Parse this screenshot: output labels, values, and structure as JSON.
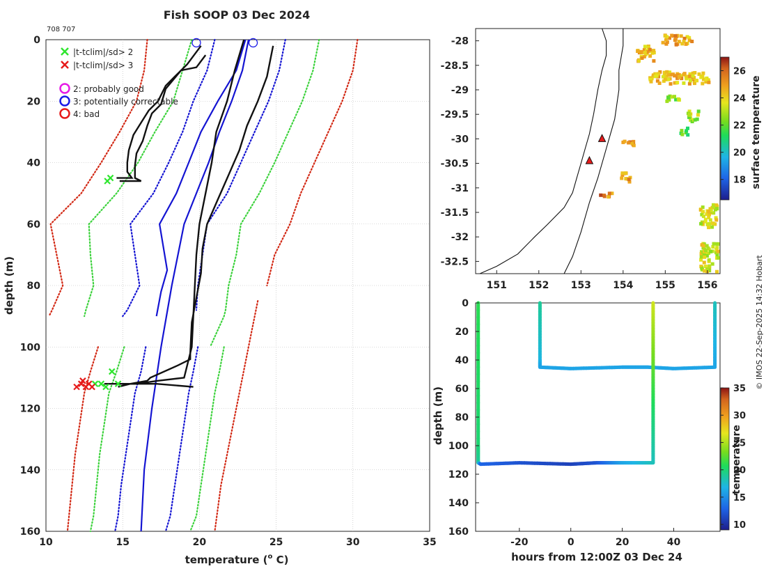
{
  "figure": {
    "title": "Fish SOOP 03 Dec 2024",
    "id_text": "708 707",
    "credit": "© IMOS 22-Sep-2025 14:32 Hobart"
  },
  "legend": {
    "items": [
      {
        "label": "|t-tclim|/sd> 2",
        "marker": "x",
        "color": "#2ee62e"
      },
      {
        "label": "|t-tclim|/sd> 3",
        "marker": "x",
        "color": "#e61a1a"
      },
      {
        "label": "2: probably good",
        "marker": "o",
        "color": "#e61ae6"
      },
      {
        "label": "3: potentially correctable",
        "marker": "o",
        "color": "#1a1ae6"
      },
      {
        "label": "4: bad",
        "marker": "o",
        "color": "#e61a1a"
      }
    ]
  },
  "colors": {
    "black": "#111111",
    "blue": "#1414d2",
    "green": "#3cd23c",
    "red": "#d22814",
    "grid": "#b4b4b4"
  },
  "chart_data": [
    {
      "name": "profile",
      "type": "line",
      "title": "Fish SOOP 03 Dec 2024",
      "xlabel": "temperature (o C)",
      "xlabel_main": "temperature (",
      "xlabel_sup": "o",
      "xlabel_tail": " C)",
      "ylabel": "depth (m)",
      "xlim": [
        10,
        35
      ],
      "ylim": [
        160,
        0
      ],
      "xticks": [
        10,
        15,
        20,
        25,
        30,
        35
      ],
      "yticks": [
        0,
        20,
        40,
        60,
        80,
        100,
        120,
        140,
        160
      ],
      "grid": true,
      "series": [
        {
          "name": "climatology red -3sd",
          "style": "red-dot",
          "x": [
            16.6,
            16.4,
            15.9,
            14.8,
            13.6,
            12.3,
            10.3,
            10.7,
            11.1,
            10.4,
            10.2
          ],
          "y": [
            0,
            10,
            20,
            30,
            40,
            50,
            60,
            70,
            80,
            88,
            90
          ]
        },
        {
          "name": "climatology red +3sd",
          "style": "red-dot",
          "x": [
            30.3,
            30.0,
            29.3,
            28.4,
            27.5,
            26.6,
            25.9,
            24.9,
            24.4
          ],
          "y": [
            0,
            10,
            20,
            30,
            40,
            50,
            60,
            70,
            80
          ]
        },
        {
          "name": "climatology red lower deep",
          "style": "red-dot",
          "x": [
            13.4,
            12.9,
            12.5,
            12.2,
            11.9,
            11.7,
            11.5,
            11.4
          ],
          "y": [
            100,
            108,
            115,
            125,
            135,
            145,
            155,
            160
          ]
        },
        {
          "name": "climatology red upper deep",
          "style": "red-dot",
          "x": [
            23.8,
            23.4,
            23.0,
            22.6,
            22.2,
            21.8,
            21.4,
            21.0
          ],
          "y": [
            85,
            95,
            105,
            115,
            125,
            135,
            145,
            160
          ]
        },
        {
          "name": "climatology green -2sd",
          "style": "green-dot",
          "x": [
            19.5,
            18.9,
            18.3,
            17.1,
            16.0,
            14.6,
            12.8,
            12.9,
            13.1,
            12.6,
            12.5
          ],
          "y": [
            0,
            10,
            20,
            30,
            40,
            50,
            60,
            70,
            80,
            88,
            90
          ]
        },
        {
          "name": "climatology green +2sd",
          "style": "green-dot",
          "x": [
            27.8,
            27.4,
            26.7,
            25.8,
            24.9,
            23.9,
            22.7,
            22.4,
            21.9,
            21.7,
            21.6,
            20.7
          ],
          "y": [
            0,
            10,
            20,
            30,
            40,
            50,
            60,
            70,
            80,
            88,
            90,
            100
          ]
        },
        {
          "name": "climatology green lower deep",
          "style": "green-dot",
          "x": [
            15.1,
            14.6,
            14.1,
            13.8,
            13.5,
            13.3,
            13.1,
            12.9
          ],
          "y": [
            100,
            108,
            115,
            125,
            135,
            145,
            155,
            160
          ]
        },
        {
          "name": "climatology green upper deep",
          "style": "green-dot",
          "x": [
            21.6,
            21.3,
            21.0,
            20.7,
            20.4,
            20.1,
            19.8,
            19.4
          ],
          "y": [
            100,
            108,
            115,
            125,
            135,
            145,
            155,
            160
          ]
        },
        {
          "name": "climatology blue -1sd",
          "style": "blue-dot",
          "x": [
            21.0,
            20.5,
            19.6,
            18.9,
            18.0,
            17.0,
            15.5,
            15.8,
            16.1,
            15.3,
            15.0
          ],
          "y": [
            0,
            10,
            20,
            30,
            40,
            50,
            60,
            70,
            80,
            88,
            90
          ]
        },
        {
          "name": "climatology blue +1sd",
          "style": "blue-dot",
          "x": [
            25.6,
            25.2,
            24.5,
            23.6,
            22.7,
            21.8,
            20.5,
            20.2,
            19.9,
            19.8
          ],
          "y": [
            0,
            10,
            20,
            30,
            40,
            50,
            60,
            70,
            80,
            88
          ]
        },
        {
          "name": "climatology blue lower deep",
          "style": "blue-dot",
          "x": [
            16.5,
            16.2,
            15.8,
            15.5,
            15.2,
            14.9,
            14.7,
            14.5
          ],
          "y": [
            100,
            108,
            115,
            125,
            135,
            145,
            155,
            160
          ]
        },
        {
          "name": "climatology blue upper deep",
          "style": "blue-dot",
          "x": [
            19.9,
            19.6,
            19.3,
            19.0,
            18.7,
            18.4,
            18.1,
            17.8
          ],
          "y": [
            100,
            108,
            115,
            125,
            135,
            145,
            155,
            160
          ]
        },
        {
          "name": "climatology mean shallow",
          "style": "blue-solid",
          "x": [
            23.0,
            22.4,
            21.2,
            20.1,
            19.3,
            18.5,
            17.4,
            17.9,
            17.5,
            17.2
          ],
          "y": [
            0,
            10,
            20,
            30,
            40,
            50,
            60,
            75,
            82,
            90
          ]
        },
        {
          "name": "climatology mean deep",
          "style": "blue-solid",
          "x": [
            23.2,
            22.8,
            22.1,
            21.3,
            20.6,
            19.8,
            19.0,
            18.2,
            17.5,
            16.9,
            16.4,
            16.2
          ],
          "y": [
            0,
            10,
            20,
            30,
            40,
            50,
            60,
            80,
            100,
            120,
            140,
            160
          ]
        },
        {
          "name": "XBT profile 1",
          "style": "black",
          "x": [
            20.4,
            19.8,
            18.8,
            17.8,
            17.5,
            16.9,
            16.6,
            16.3,
            15.9,
            15.8,
            15.8,
            16.2,
            15.0,
            14.8
          ],
          "y": [
            5,
            9,
            10,
            16,
            21,
            24,
            28,
            33,
            37,
            41,
            45,
            46,
            46,
            46
          ]
        },
        {
          "name": "XBT profile 2",
          "style": "black",
          "x": [
            20.1,
            19.2,
            18.4,
            17.8,
            17.3,
            16.7,
            16.2,
            15.7,
            15.4,
            15.3,
            15.3,
            15.6,
            14.6
          ],
          "y": [
            2,
            8,
            12,
            15,
            20,
            23,
            27,
            31,
            36,
            40,
            43,
            45,
            45
          ]
        },
        {
          "name": "XBT profile 3",
          "style": "black",
          "x": [
            22.9,
            22.3,
            21.8,
            21.1,
            20.8,
            20.4,
            20.0,
            19.8,
            19.7,
            19.6,
            19.5,
            19.4,
            19.4,
            18.6,
            16.8,
            16.6,
            15.5,
            14.7,
            15.4,
            17.2,
            19.6
          ],
          "y": [
            0,
            10,
            20,
            30,
            40,
            50,
            60,
            70,
            80,
            90,
            100,
            102,
            104,
            106,
            110,
            111,
            112,
            113,
            112,
            112,
            113
          ]
        },
        {
          "name": "XBT profile 4",
          "style": "black",
          "x": [
            24.8,
            24.4,
            23.8,
            23.1,
            22.6,
            21.9,
            21.2,
            20.5,
            20.2,
            20.1,
            19.8,
            19.5,
            19.4,
            19.0,
            17.3,
            15.9,
            13.8
          ],
          "y": [
            2,
            12,
            20,
            28,
            36,
            44,
            52,
            60,
            68,
            76,
            84,
            92,
            102,
            110,
            111,
            112,
            112
          ]
        }
      ],
      "flags": [
        {
          "name": "sd>2 marks",
          "color": "#2ee62e",
          "x": [
            14.2,
            14.0,
            13.6,
            13.9,
            14.7,
            14.3,
            13.2
          ],
          "y": [
            45,
            46,
            112,
            113,
            112,
            108,
            112
          ]
        },
        {
          "name": "sd>3 marks",
          "color": "#e61a1a",
          "x": [
            12.0,
            12.3,
            12.6,
            12.8,
            13.0,
            12.4
          ],
          "y": [
            113,
            112,
            113,
            112,
            113,
            111
          ]
        }
      ],
      "circles": [
        {
          "name": "surface QC circle 1",
          "color": "#1a1ae6",
          "x": 19.8,
          "y": 1
        },
        {
          "name": "surface QC circle 2",
          "color": "#1a1ae6",
          "x": 23.5,
          "y": 1
        }
      ]
    },
    {
      "name": "map",
      "type": "heatmap",
      "colorbar_label": "surface temperature",
      "xlim": [
        150.5,
        156.3
      ],
      "ylim": [
        -32.75,
        -27.75
      ],
      "xticks": [
        151,
        152,
        153,
        154,
        155,
        156
      ],
      "yticks": [
        -28,
        -28.5,
        -29,
        -29.5,
        -30,
        -30.5,
        -31,
        -31.5,
        -32,
        -32.5
      ],
      "ytick_labels": [
        "-28",
        "-28.5",
        "-29",
        "-29.5",
        "-30",
        "-30.5",
        "-31",
        "-31.5",
        "-32",
        "-32.5"
      ],
      "colorbar_ticks": [
        18,
        20,
        22,
        24,
        26
      ],
      "colorbar_range": [
        16.5,
        27
      ],
      "stations": [
        {
          "lon": 153.5,
          "lat": -30.0
        },
        {
          "lon": 153.2,
          "lat": -30.45
        }
      ],
      "coastline": {
        "lon": [
          150.6,
          151.0,
          151.5,
          151.9,
          152.2,
          152.6,
          152.8,
          152.9,
          153.0,
          153.1,
          153.2,
          153.3,
          153.4,
          153.5,
          153.6,
          153.6,
          153.5
        ],
        "lat": [
          -32.75,
          -32.6,
          -32.35,
          -32.0,
          -31.75,
          -31.4,
          -31.1,
          -30.8,
          -30.5,
          -30.2,
          -29.9,
          -29.5,
          -29.0,
          -28.6,
          -28.3,
          -28.0,
          -27.75
        ]
      },
      "shelf_edge": {
        "lon": [
          152.6,
          152.8,
          153.0,
          153.2,
          153.4,
          153.6,
          153.8,
          153.9,
          153.9,
          154.0,
          154.0
        ],
        "lat": [
          -32.75,
          -32.4,
          -31.9,
          -31.3,
          -30.8,
          -30.2,
          -29.6,
          -29.0,
          -28.6,
          -28.1,
          -27.75
        ]
      },
      "patches": [
        {
          "lon": 154.3,
          "lat": -28.05,
          "dlon": 0.4,
          "dlat": 0.35,
          "value": 24.5
        },
        {
          "lon": 154.9,
          "lat": -27.85,
          "dlon": 0.7,
          "dlat": 0.2,
          "value": 24.8
        },
        {
          "lon": 154.6,
          "lat": -28.6,
          "dlon": 1.4,
          "dlat": 0.25,
          "value": 24.5
        },
        {
          "lon": 155.0,
          "lat": -29.05,
          "dlon": 0.3,
          "dlat": 0.15,
          "value": 22.5
        },
        {
          "lon": 155.5,
          "lat": -29.4,
          "dlon": 0.25,
          "dlat": 0.25,
          "value": 23.0
        },
        {
          "lon": 155.3,
          "lat": -29.75,
          "dlon": 0.2,
          "dlat": 0.15,
          "value": 21.5
        },
        {
          "lon": 153.9,
          "lat": -30.0,
          "dlon": 0.4,
          "dlat": 0.1,
          "value": 25.5
        },
        {
          "lon": 153.9,
          "lat": -30.65,
          "dlon": 0.25,
          "dlat": 0.2,
          "value": 25.0
        },
        {
          "lon": 153.4,
          "lat": -31.05,
          "dlon": 0.3,
          "dlat": 0.1,
          "value": 25.5
        },
        {
          "lon": 155.8,
          "lat": -31.3,
          "dlon": 0.4,
          "dlat": 0.5,
          "value": 23.5
        },
        {
          "lon": 155.8,
          "lat": -32.1,
          "dlon": 0.8,
          "dlat": 0.8,
          "value": 23.5
        }
      ]
    },
    {
      "name": "section",
      "type": "line",
      "colorbar_label": "temperature",
      "xlabel": "hours from 12:00Z 03 Dec 24",
      "ylabel": "depth (m)",
      "xlim": [
        -37,
        58
      ],
      "ylim": [
        160,
        0
      ],
      "xticks": [
        -20,
        0,
        20,
        40
      ],
      "yticks": [
        0,
        20,
        40,
        60,
        80,
        100,
        120,
        140,
        160
      ],
      "colorbar_ticks": [
        10,
        15,
        20,
        25,
        30,
        35
      ],
      "colorbar_range": [
        9,
        35
      ],
      "casts": [
        {
          "x": [
            -36,
            -36,
            -36,
            -35,
            -20,
            0,
            10,
            20,
            32
          ],
          "y": [
            0,
            100,
            112,
            113,
            112,
            113,
            112,
            112,
            112
          ],
          "t": [
            21,
            20,
            19,
            13,
            12,
            11,
            12,
            16,
            18
          ]
        },
        {
          "x": [
            -12,
            -12,
            -12,
            0,
            20,
            30,
            40,
            56,
            56
          ],
          "y": [
            0,
            40,
            45,
            46,
            45,
            45,
            46,
            45,
            0
          ],
          "t": [
            19,
            17,
            16,
            16,
            16,
            16,
            16,
            16,
            18
          ]
        },
        {
          "x": [
            32,
            32,
            32,
            32
          ],
          "y": [
            0,
            40,
            80,
            112
          ],
          "t": [
            26,
            23,
            20,
            18
          ]
        }
      ]
    }
  ]
}
